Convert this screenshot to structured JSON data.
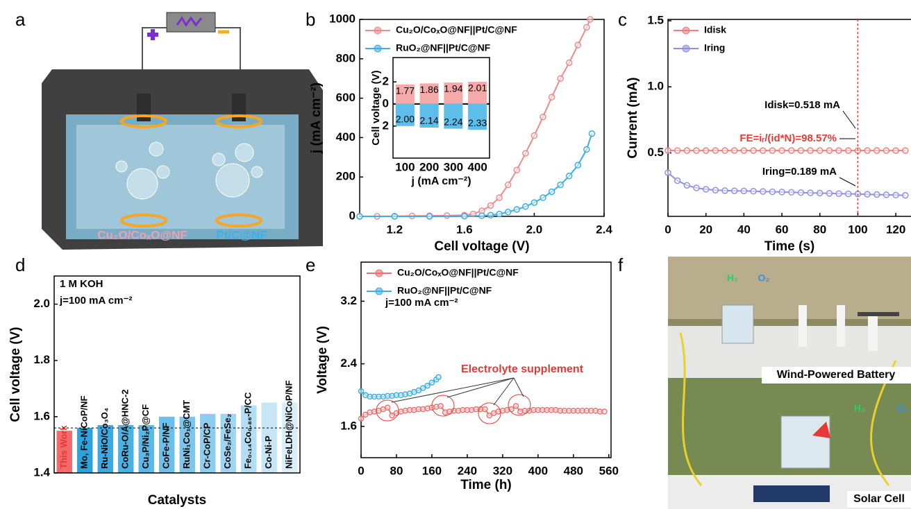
{
  "figure": {
    "panel_labels": [
      "a",
      "b",
      "c",
      "d",
      "e",
      "f"
    ],
    "a_labels": [
      "Cu₂O/CoₓO@NF",
      "Pt/C@NF"
    ],
    "f_labels": [
      "Wind-Powered Battery",
      "Solar Cell",
      "H₂",
      "O₂",
      "H₂",
      "O₂"
    ]
  },
  "chart_data": [
    {
      "type": "line",
      "xlabel": "Cell voltage (V)",
      "ylabel": "j (mA cm⁻²)",
      "xlim": [
        1.0,
        2.4
      ],
      "ylim": [
        0,
        1000
      ],
      "xticks": [
        1.2,
        1.6,
        {
          "value": 2,
          "label": "2.0"
        },
        2.4
      ],
      "yticks": [
        0,
        200,
        400,
        600,
        800,
        1000
      ],
      "legend": "upper left",
      "series": [
        {
          "name": "Cu₂O/CoₓO@NF||Pt/C@NF",
          "color": "#ef8a8a",
          "x": [
            1.0,
            1.1,
            1.2,
            1.3,
            1.4,
            1.5,
            1.6,
            1.65,
            1.7,
            1.75,
            1.8,
            1.85,
            1.9,
            1.95,
            2.0,
            2.05,
            2.1,
            2.15,
            2.2,
            2.25,
            2.3,
            2.32
          ],
          "values": [
            0,
            0,
            1,
            2,
            3,
            4,
            6,
            12,
            28,
            55,
            95,
            160,
            235,
            320,
            410,
            505,
            605,
            700,
            780,
            870,
            960,
            1000
          ]
        },
        {
          "name": "RuO₂@NF||Pt/C@NF",
          "color": "#3aaee6",
          "x": [
            1.0,
            1.2,
            1.4,
            1.6,
            1.7,
            1.75,
            1.8,
            1.85,
            1.9,
            1.95,
            2.0,
            2.05,
            2.1,
            2.15,
            2.2,
            2.25,
            2.3,
            2.33
          ],
          "values": [
            0,
            0,
            0,
            1,
            3,
            6,
            12,
            22,
            35,
            50,
            70,
            95,
            125,
            160,
            205,
            260,
            340,
            420
          ]
        }
      ]
    },
    {
      "type": "bar",
      "xlabel": "j (mA cm⁻²)",
      "ylabel": "Cell voltage (V)",
      "categories": [
        "100",
        "200",
        "300",
        "400"
      ],
      "ylim": [
        -4.9,
        4.2
      ],
      "yticks": [
        {
          "value": -2,
          "label": "2"
        },
        0,
        2
      ],
      "series": [
        {
          "color": "#f5a9a9",
          "direction": "up",
          "values": [
            1.77,
            1.86,
            1.94,
            2.01
          ],
          "value_labels": [
            "1.77",
            "1.86",
            "1.94",
            "2.01"
          ]
        },
        {
          "color": "#5fbde9",
          "direction": "down",
          "values": [
            2.0,
            2.14,
            2.24,
            2.33
          ],
          "value_labels": [
            "2.00",
            "2.14",
            "2.24",
            "2.33"
          ]
        }
      ]
    },
    {
      "type": "line",
      "xlabel": "Time (s)",
      "ylabel": "Current (mA)",
      "xlim": [
        0,
        128
      ],
      "ylim": [
        0.02,
        1.51
      ],
      "xticks": [
        0,
        20,
        40,
        60,
        80,
        100,
        120
      ],
      "yticks": [
        0.5,
        {
          "value": 1,
          "label": "1.0"
        },
        1.5
      ],
      "legend": "upper left",
      "vline": 100,
      "annotations": [
        "Idisk=0.518 mA",
        "FE=iᵣ/(id*N)=98.57%",
        "Iring=0.189 mA"
      ],
      "series": [
        {
          "name": "Idisk",
          "color": "#ef7d7d",
          "x": [
            0,
            5,
            10,
            15,
            20,
            25,
            30,
            35,
            40,
            45,
            50,
            55,
            60,
            65,
            70,
            75,
            80,
            85,
            90,
            95,
            100,
            105,
            110,
            115,
            120,
            125
          ],
          "values": [
            0.518,
            0.518,
            0.518,
            0.518,
            0.518,
            0.518,
            0.518,
            0.518,
            0.518,
            0.518,
            0.518,
            0.518,
            0.518,
            0.518,
            0.518,
            0.518,
            0.518,
            0.518,
            0.518,
            0.518,
            0.518,
            0.518,
            0.518,
            0.518,
            0.518,
            0.518
          ]
        },
        {
          "name": "Iring",
          "color": "#8f8fe6",
          "x": [
            0,
            5,
            10,
            15,
            20,
            25,
            30,
            35,
            40,
            45,
            50,
            55,
            60,
            65,
            70,
            75,
            80,
            85,
            90,
            95,
            100,
            105,
            110,
            115,
            120,
            125
          ],
          "values": [
            0.35,
            0.29,
            0.255,
            0.235,
            0.225,
            0.218,
            0.215,
            0.213,
            0.212,
            0.21,
            0.208,
            0.206,
            0.204,
            0.202,
            0.2,
            0.198,
            0.196,
            0.194,
            0.192,
            0.19,
            0.189,
            0.187,
            0.185,
            0.183,
            0.181,
            0.179
          ]
        }
      ]
    },
    {
      "type": "bar",
      "xlabel": "Catalysts",
      "ylabel": "Cell voltage (V)",
      "annotations": [
        "1 M KOH",
        "j=100 mA cm⁻²"
      ],
      "ylim": [
        1.4,
        2.1
      ],
      "yticks": [
        1.4,
        1.6,
        1.8,
        {
          "value": 2,
          "label": "2.0"
        }
      ],
      "reference_line": 1.56,
      "categories": [
        "This Work",
        "Mo, Fe-NiCoP/NF",
        "Ru-NiO/Co₃O₄",
        "CoRu-O/A@HNC-2",
        "Cu₃P/Ni₂P@CF",
        "CoFe-P/NF",
        "RuNi₁Co₁@CMT",
        "Cr-CoP/CP",
        "CoSe₂/FeSe₂",
        "Fe₀.₁₄Co₀.₈₆-P/CC",
        "Co-Ni-P",
        "NiFeLDH@NiCoP/NF"
      ],
      "values": [
        1.55,
        1.56,
        1.57,
        1.57,
        1.57,
        1.6,
        1.6,
        1.61,
        1.61,
        1.64,
        1.65,
        1.65
      ],
      "colors": [
        "#f46a6a",
        "#2ba3dd",
        "#3aaae0",
        "#4ab1e3",
        "#5ab8e6",
        "#6bbfe9",
        "#7cc6ec",
        "#8ecdee",
        "#a0d5f1",
        "#b3ddf3",
        "#c6e6f6",
        "#d9eef8"
      ]
    },
    {
      "type": "line",
      "xlabel": "Time (h)",
      "ylabel": "Voltage (V)",
      "xlim": [
        0,
        565
      ],
      "ylim": [
        1.2,
        3.7
      ],
      "xticks": [
        0,
        80,
        160,
        240,
        320,
        400,
        480,
        560
      ],
      "yticks": [
        1.6,
        2.4,
        3.2
      ],
      "legend": "upper left",
      "annotations": [
        "j=100 mA cm⁻²",
        "Electrolyte supplement"
      ],
      "series": [
        {
          "name": "Cu₂O/CoₓO@NF||Pt/C@NF",
          "color": "#ef6f6f",
          "x": [
            0,
            10,
            20,
            30,
            40,
            50,
            60,
            70,
            80,
            90,
            100,
            110,
            120,
            130,
            140,
            150,
            160,
            170,
            180,
            190,
            200,
            210,
            220,
            230,
            240,
            250,
            260,
            270,
            280,
            290,
            300,
            310,
            320,
            330,
            340,
            350,
            360,
            370,
            380,
            390,
            400,
            410,
            420,
            430,
            440,
            450,
            460,
            470,
            480,
            490,
            500,
            510,
            520,
            530,
            540,
            550
          ],
          "values": [
            1.7,
            1.75,
            1.78,
            1.79,
            1.8,
            1.82,
            1.84,
            1.74,
            1.77,
            1.79,
            1.8,
            1.81,
            1.81,
            1.82,
            1.82,
            1.83,
            1.84,
            1.85,
            1.86,
            1.78,
            1.79,
            1.8,
            1.8,
            1.81,
            1.81,
            1.81,
            1.82,
            1.82,
            1.82,
            1.74,
            1.77,
            1.79,
            1.8,
            1.81,
            1.82,
            1.86,
            1.79,
            1.8,
            1.8,
            1.81,
            1.81,
            1.81,
            1.81,
            1.81,
            1.81,
            1.8,
            1.8,
            1.8,
            1.8,
            1.8,
            1.8,
            1.8,
            1.8,
            1.8,
            1.79,
            1.79
          ]
        },
        {
          "name": "RuO₂@NF||Pt/C@NF",
          "color": "#3aaee6",
          "x": [
            0,
            10,
            20,
            30,
            40,
            50,
            60,
            70,
            80,
            90,
            100,
            110,
            120,
            130,
            140,
            150,
            160,
            170,
            175
          ],
          "values": [
            2.05,
            2.0,
            1.98,
            1.98,
            1.98,
            1.98,
            1.99,
            1.99,
            2.0,
            2.0,
            2.01,
            2.02,
            2.04,
            2.06,
            2.09,
            2.12,
            2.16,
            2.2,
            2.23
          ]
        }
      ]
    }
  ]
}
